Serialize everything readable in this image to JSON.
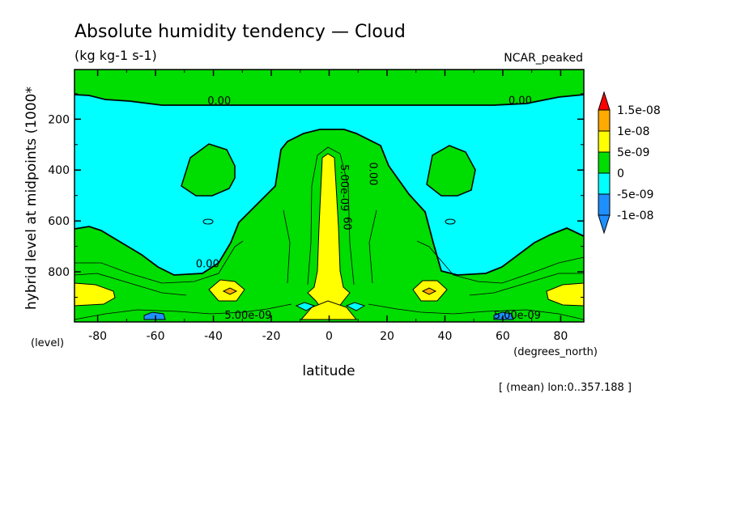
{
  "header": {
    "title": "Absolute humidity tendency — Cloud",
    "units": "(kg kg-1 s-1)",
    "dataset": "NCAR_peaked"
  },
  "footer": {
    "note": "[ (mean) lon:0..357.188 ]"
  },
  "chart_data": {
    "type": "contour",
    "title": "Absolute humidity tendency — Cloud",
    "subtitle": "(kg kg-1 s-1)",
    "xlabel": "latitude",
    "xlabel_units": "(degrees_north)",
    "ylabel": "hybrid level at midpoints (1000*",
    "ylabel_units": "(level)",
    "xlim": [
      -88,
      88
    ],
    "ylim": [
      997,
      5
    ],
    "y_inverted": true,
    "x_ticks": [
      -80,
      -60,
      -40,
      -20,
      0,
      20,
      40,
      60,
      80
    ],
    "y_ticks": [
      200,
      400,
      600,
      800
    ],
    "contour_labels": [
      {
        "text": "0.00",
        "x": -38,
        "y": 142
      },
      {
        "text": "0.00",
        "x": 66,
        "y": 140
      },
      {
        "text": "0.00",
        "x": 14,
        "y": 415
      },
      {
        "text": "0.00",
        "x": -42,
        "y": 782
      },
      {
        "text": "5.00e-09",
        "x": 4,
        "y": 470
      },
      {
        "text": "60",
        "x": 5,
        "y": 610
      },
      {
        "text": "5.00e-09",
        "x": -28,
        "y": 985
      },
      {
        "text": "5.00e-09",
        "x": 65,
        "y": 985
      }
    ],
    "colorbar": {
      "levels": [
        "-1e-08",
        "-5e-09",
        "0",
        "5e-09",
        "1e-08",
        "1.5e-08"
      ],
      "colors": [
        "#1e8fff",
        "#00ffff",
        "#00dd00",
        "#ffff00",
        "#ffaa00",
        "#ff0000"
      ],
      "under_color": "#1e8fff",
      "over_color": "#ff0000"
    },
    "legend_position": "right",
    "grid": false
  }
}
